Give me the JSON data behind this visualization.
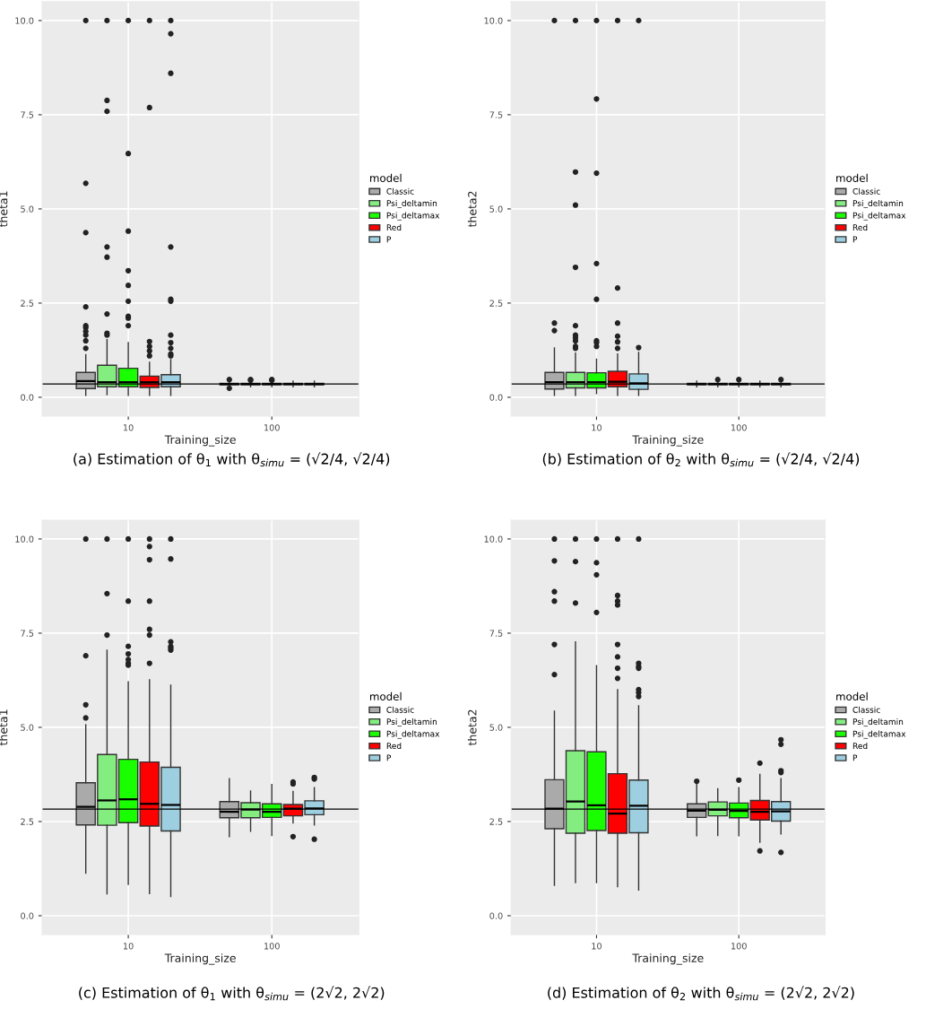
{
  "chart_data": [
    {
      "type": "box",
      "xlabel": "Training_size",
      "ylabel": "theta1",
      "legend_title": "model",
      "legend": "right",
      "grid": true,
      "categories": [
        "10",
        "100"
      ],
      "ylim": [
        -0.5,
        10.5
      ],
      "yticks": [
        {
          "value": 0,
          "label": "0.0"
        },
        {
          "value": 2.5,
          "label": "2.5"
        },
        {
          "value": 5,
          "label": "5.0"
        },
        {
          "value": 7.5,
          "label": "7.5"
        },
        {
          "value": 10,
          "label": "10.0"
        }
      ],
      "ref_lines": [
        {
          "axis": "y",
          "value": 0.354,
          "color": "#000000"
        }
      ],
      "annotations": [
        "(a) Estimation of θ$_{1}$ with θ$_{simu}$ = (√2/4, √2/4)"
      ],
      "series": [
        {
          "name": "Classic",
          "color": "#aaaaaa",
          "boxes": [
            {
              "low": 0.05,
              "q1": 0.23,
              "median": 0.43,
              "q3": 0.66,
              "high": 1.13,
              "outliers": [
                10,
                5.68,
                4.37,
                2.4,
                1.9,
                1.85,
                1.75,
                1.65,
                1.5,
                1.3
              ]
            },
            {
              "low": 0.28,
              "q1": 0.33,
              "median": 0.35,
              "q3": 0.37,
              "high": 0.43,
              "outliers": [
                0.47,
                0.24
              ]
            }
          ]
        },
        {
          "name": "Psi_deltamin",
          "color": "#84ed7f",
          "boxes": [
            {
              "low": 0.07,
              "q1": 0.28,
              "median": 0.4,
              "q3": 0.85,
              "high": 1.53,
              "outliers": [
                10,
                7.88,
                7.59,
                3.99,
                3.72,
                2.21,
                1.7,
                1.65
              ]
            },
            {
              "low": 0.28,
              "q1": 0.33,
              "median": 0.35,
              "q3": 0.37,
              "high": 0.43,
              "outliers": [
                0.45,
                0.47
              ]
            }
          ]
        },
        {
          "name": "Psi_deltamax",
          "color": "#1aff00",
          "boxes": [
            {
              "low": 0.05,
              "q1": 0.28,
              "median": 0.4,
              "q3": 0.77,
              "high": 1.45,
              "outliers": [
                10,
                6.47,
                4.41,
                3.36,
                2.97,
                2.55,
                2.15,
                2.1,
                1.9
              ]
            },
            {
              "low": 0.28,
              "q1": 0.33,
              "median": 0.35,
              "q3": 0.37,
              "high": 0.43,
              "outliers": [
                0.45,
                0.47
              ]
            }
          ]
        },
        {
          "name": "Red",
          "color": "#ff0000",
          "boxes": [
            {
              "low": 0.05,
              "q1": 0.26,
              "median": 0.4,
              "q3": 0.56,
              "high": 0.93,
              "outliers": [
                10,
                7.69,
                1.48,
                1.35,
                1.23,
                1.1
              ]
            },
            {
              "low": 0.28,
              "q1": 0.33,
              "median": 0.35,
              "q3": 0.37,
              "high": 0.43
            }
          ]
        },
        {
          "name": "P",
          "color": "#9ecfe0",
          "boxes": [
            {
              "low": 0.05,
              "q1": 0.28,
              "median": 0.4,
              "q3": 0.6,
              "high": 1.0,
              "outliers": [
                10,
                9.65,
                8.6,
                3.99,
                2.6,
                2.55,
                1.65,
                1.45,
                1.3,
                1.15,
                1.1
              ]
            },
            {
              "low": 0.28,
              "q1": 0.33,
              "median": 0.35,
              "q3": 0.37,
              "high": 0.43
            }
          ]
        }
      ]
    },
    {
      "type": "box",
      "xlabel": "Training_size",
      "ylabel": "theta2",
      "legend_title": "model",
      "legend": "right",
      "grid": true,
      "categories": [
        "10",
        "100"
      ],
      "ylim": [
        -0.5,
        10.5
      ],
      "yticks": [
        {
          "value": 0,
          "label": "0.0"
        },
        {
          "value": 2.5,
          "label": "2.5"
        },
        {
          "value": 5,
          "label": "5.0"
        },
        {
          "value": 7.5,
          "label": "7.5"
        },
        {
          "value": 10,
          "label": "10.0"
        }
      ],
      "ref_lines": [
        {
          "axis": "y",
          "value": 0.354,
          "color": "#000000"
        }
      ],
      "annotations": [
        "(b) Estimation of θ$_{2}$ with θ$_{simu}$ = (√2/4, √2/4)"
      ],
      "series": [
        {
          "name": "Classic",
          "color": "#aaaaaa",
          "boxes": [
            {
              "low": 0.05,
              "q1": 0.22,
              "median": 0.4,
              "q3": 0.66,
              "high": 1.31,
              "outliers": [
                10,
                1.97,
                1.77
              ]
            },
            {
              "low": 0.28,
              "q1": 0.33,
              "median": 0.35,
              "q3": 0.37,
              "high": 0.43
            }
          ]
        },
        {
          "name": "Psi_deltamin",
          "color": "#84ed7f",
          "boxes": [
            {
              "low": 0.05,
              "q1": 0.25,
              "median": 0.4,
              "q3": 0.66,
              "high": 1.17,
              "outliers": [
                10,
                5.98,
                5.1,
                3.45,
                1.9,
                1.65,
                1.58,
                1.5,
                1.35,
                1.3
              ]
            },
            {
              "low": 0.28,
              "q1": 0.33,
              "median": 0.35,
              "q3": 0.37,
              "high": 0.43,
              "outliers": [
                0.47
              ]
            }
          ]
        },
        {
          "name": "Psi_deltamax",
          "color": "#1aff00",
          "boxes": [
            {
              "low": 0.1,
              "q1": 0.25,
              "median": 0.4,
              "q3": 0.65,
              "high": 1.01,
              "outliers": [
                10,
                7.92,
                5.95,
                3.55,
                2.6,
                1.5,
                1.45,
                1.35
              ]
            },
            {
              "low": 0.28,
              "q1": 0.33,
              "median": 0.35,
              "q3": 0.37,
              "high": 0.43,
              "outliers": [
                0.47
              ]
            }
          ]
        },
        {
          "name": "Red",
          "color": "#ff0000",
          "boxes": [
            {
              "low": 0.05,
              "q1": 0.28,
              "median": 0.41,
              "q3": 0.69,
              "high": 1.15,
              "outliers": [
                10,
                2.9,
                1.97,
                1.62,
                1.47,
                1.3
              ]
            },
            {
              "low": 0.28,
              "q1": 0.33,
              "median": 0.35,
              "q3": 0.37,
              "high": 0.43
            }
          ]
        },
        {
          "name": "P",
          "color": "#9ecfe0",
          "boxes": [
            {
              "low": 0.05,
              "q1": 0.21,
              "median": 0.37,
              "q3": 0.62,
              "high": 1.19,
              "outliers": [
                10,
                1.32
              ]
            },
            {
              "low": 0.28,
              "q1": 0.33,
              "median": 0.35,
              "q3": 0.37,
              "high": 0.43,
              "outliers": [
                0.47
              ]
            }
          ]
        }
      ]
    },
    {
      "type": "box",
      "xlabel": "Training_size",
      "ylabel": "theta1",
      "legend_title": "model",
      "legend": "right",
      "grid": true,
      "categories": [
        "10",
        "100"
      ],
      "ylim": [
        -0.5,
        10.5
      ],
      "yticks": [
        {
          "value": 0,
          "label": "0.0"
        },
        {
          "value": 2.5,
          "label": "2.5"
        },
        {
          "value": 5,
          "label": "5.0"
        },
        {
          "value": 7.5,
          "label": "7.5"
        },
        {
          "value": 10,
          "label": "10.0"
        }
      ],
      "ref_lines": [
        {
          "axis": "y",
          "value": 2.83,
          "color": "#000000"
        }
      ],
      "annotations": [
        "(c) Estimation of θ$_{1}$ with θ$_{simu}$ = (2√2, 2√2)"
      ],
      "series": [
        {
          "name": "Classic",
          "color": "#aaaaaa",
          "boxes": [
            {
              "low": 1.13,
              "q1": 2.41,
              "median": 2.89,
              "q3": 3.53,
              "high": 5.07,
              "outliers": [
                10,
                6.9,
                5.6,
                5.25
              ]
            },
            {
              "low": 2.1,
              "q1": 2.6,
              "median": 2.76,
              "q3": 3.03,
              "high": 3.64
            }
          ]
        },
        {
          "name": "Psi_deltamin",
          "color": "#84ed7f",
          "boxes": [
            {
              "low": 0.58,
              "q1": 2.4,
              "median": 3.06,
              "q3": 4.28,
              "high": 7.05,
              "outliers": [
                10,
                8.55,
                7.45
              ]
            },
            {
              "low": 2.24,
              "q1": 2.6,
              "median": 2.82,
              "q3": 3.0,
              "high": 3.31
            }
          ]
        },
        {
          "name": "Psi_deltamax",
          "color": "#1aff00",
          "boxes": [
            {
              "low": 0.83,
              "q1": 2.47,
              "median": 3.09,
              "q3": 4.15,
              "high": 6.21,
              "outliers": [
                10,
                8.35,
                7.15,
                6.95,
                6.8,
                6.7,
                6.65
              ]
            },
            {
              "low": 2.13,
              "q1": 2.61,
              "median": 2.76,
              "q3": 2.97,
              "high": 3.48
            }
          ]
        },
        {
          "name": "Red",
          "color": "#ff0000",
          "boxes": [
            {
              "low": 0.59,
              "q1": 2.38,
              "median": 2.97,
              "q3": 4.08,
              "high": 6.26,
              "outliers": [
                10,
                9.8,
                9.45,
                8.35,
                7.6,
                7.45,
                6.7
              ]
            },
            {
              "low": 2.46,
              "q1": 2.65,
              "median": 2.84,
              "q3": 2.95,
              "high": 3.3,
              "outliers": [
                3.55,
                3.5,
                2.1
              ]
            }
          ]
        },
        {
          "name": "P",
          "color": "#9ecfe0",
          "boxes": [
            {
              "low": 0.51,
              "q1": 2.25,
              "median": 2.94,
              "q3": 3.94,
              "high": 6.12,
              "outliers": [
                10,
                9.47,
                7.27,
                7.15,
                7.1,
                7.05
              ]
            },
            {
              "low": 2.41,
              "q1": 2.68,
              "median": 2.85,
              "q3": 3.05,
              "high": 3.4,
              "outliers": [
                3.67,
                3.63,
                2.03
              ]
            }
          ]
        }
      ]
    },
    {
      "type": "box",
      "xlabel": "Training_size",
      "ylabel": "theta2",
      "legend_title": "model",
      "legend": "right",
      "grid": true,
      "categories": [
        "10",
        "100"
      ],
      "ylim": [
        -0.5,
        10.5
      ],
      "yticks": [
        {
          "value": 0,
          "label": "0.0"
        },
        {
          "value": 2.5,
          "label": "2.5"
        },
        {
          "value": 5,
          "label": "5.0"
        },
        {
          "value": 7.5,
          "label": "7.5"
        },
        {
          "value": 10,
          "label": "10.0"
        }
      ],
      "ref_lines": [
        {
          "axis": "y",
          "value": 2.83,
          "color": "#000000"
        }
      ],
      "annotations": [
        "(d) Estimation of θ$_{2}$ with θ$_{simu}$ = (2√2, 2√2)"
      ],
      "series": [
        {
          "name": "Classic",
          "color": "#aaaaaa",
          "boxes": [
            {
              "low": 0.81,
              "q1": 2.31,
              "median": 2.84,
              "q3": 3.61,
              "high": 5.43,
              "outliers": [
                10,
                9.42,
                8.6,
                8.35,
                7.2,
                6.4
              ]
            },
            {
              "low": 2.12,
              "q1": 2.61,
              "median": 2.79,
              "q3": 2.97,
              "high": 3.48,
              "outliers": [
                3.57
              ]
            }
          ]
        },
        {
          "name": "Psi_deltamin",
          "color": "#84ed7f",
          "boxes": [
            {
              "low": 0.88,
              "q1": 2.19,
              "median": 3.03,
              "q3": 4.38,
              "high": 7.27,
              "outliers": [
                10,
                9.4,
                8.3
              ]
            },
            {
              "low": 2.13,
              "q1": 2.65,
              "median": 2.81,
              "q3": 3.02,
              "high": 3.37
            }
          ]
        },
        {
          "name": "Psi_deltamax",
          "color": "#1aff00",
          "boxes": [
            {
              "low": 0.88,
              "q1": 2.26,
              "median": 2.93,
              "q3": 4.35,
              "high": 6.64,
              "outliers": [
                10,
                9.37,
                9.05,
                8.05
              ]
            },
            {
              "low": 2.12,
              "q1": 2.6,
              "median": 2.78,
              "q3": 2.99,
              "high": 3.4,
              "outliers": [
                3.6
              ]
            }
          ]
        },
        {
          "name": "Red",
          "color": "#ff0000",
          "boxes": [
            {
              "low": 0.77,
              "q1": 2.19,
              "median": 2.71,
              "q3": 3.77,
              "high": 6.0,
              "outliers": [
                10,
                8.5,
                8.35,
                8.25,
                7.2,
                6.87,
                6.57,
                6.3
              ]
            },
            {
              "low": 1.95,
              "q1": 2.54,
              "median": 2.76,
              "q3": 3.06,
              "high": 3.75,
              "outliers": [
                4.05,
                1.72
              ]
            }
          ]
        },
        {
          "name": "P",
          "color": "#9ecfe0",
          "boxes": [
            {
              "low": 0.68,
              "q1": 2.2,
              "median": 2.92,
              "q3": 3.6,
              "high": 5.57,
              "outliers": [
                10,
                6.7,
                6.62,
                6.57,
                6.0,
                5.92,
                5.82
              ]
            },
            {
              "low": 2.17,
              "q1": 2.51,
              "median": 2.77,
              "q3": 3.03,
              "high": 3.64,
              "outliers": [
                4.67,
                4.55,
                3.85,
                3.8,
                1.68
              ]
            }
          ]
        }
      ]
    }
  ]
}
